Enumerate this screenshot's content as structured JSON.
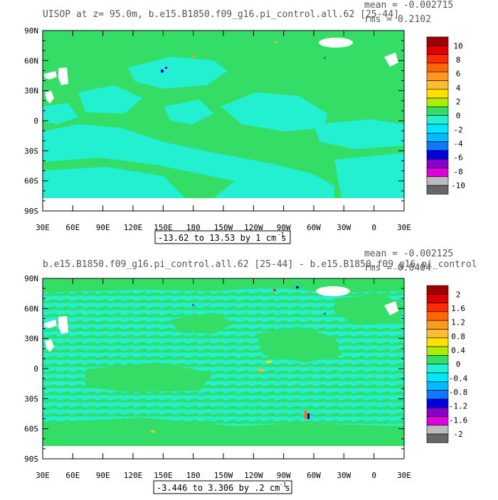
{
  "colors": {
    "ocean_green": "#33dd66",
    "ocean_cyan": "#22f0d0",
    "land": "#ffffff",
    "frame": "#000000",
    "title_text": "#555555"
  },
  "panels": [
    {
      "id": "top",
      "title": "UISOP at z=  95.0m, b.e15.B1850.f09_g16.pi_control.all.62 [25-44]",
      "mean_label": "mean = -0.002715",
      "rms_label": "rms = 0.2102",
      "range_label": "-13.62 to 13.53 by 1 cm s",
      "range_unit_exp": "-1",
      "lat_labels": [
        "90N",
        "60N",
        "30N",
        "0",
        "30S",
        "60S",
        "90S"
      ],
      "lon_labels": [
        "30E",
        "60E",
        "90E",
        "120E",
        "150E",
        "180",
        "150W",
        "120W",
        "90W",
        "60W",
        "30W",
        "0",
        "30E"
      ],
      "colorbar": {
        "labels": [
          "10",
          "8",
          "6",
          "4",
          "2",
          "0",
          "-2",
          "-4",
          "-6",
          "-8",
          "-10"
        ],
        "colors": [
          "#a00000",
          "#dd0000",
          "#ff2a00",
          "#ff6600",
          "#ff9920",
          "#ffbb33",
          "#ffe000",
          "#aaee00",
          "#33dd66",
          "#22f0d0",
          "#00e8ff",
          "#00bbff",
          "#1177ff",
          "#0000dd",
          "#8800cc",
          "#dd00dd",
          "#bbbbbb",
          "#666666"
        ]
      }
    },
    {
      "id": "bottom",
      "title": "b.e15.B1850.f09_g16.pi_control.all.62 [25-44] - b.e15.B1850.f09_g16.pi_control",
      "mean_label": "mean = -0.002125",
      "rms_label": "rms = 0.0404",
      "range_label": "-3.446 to 3.306 by .2 cm s",
      "range_unit_exp": "-1",
      "lat_labels": [
        "90N",
        "60N",
        "30N",
        "0",
        "30S",
        "60S",
        "90S"
      ],
      "lon_labels": [
        "30E",
        "60E",
        "90E",
        "120E",
        "150E",
        "180",
        "150W",
        "120W",
        "90W",
        "60W",
        "30W",
        "0",
        "30E"
      ],
      "colorbar": {
        "labels": [
          "2",
          "1.6",
          "1.2",
          "0.8",
          "0.4",
          "0",
          "-0.4",
          "-0.8",
          "-1.2",
          "-1.6",
          "-2"
        ],
        "colors": [
          "#a00000",
          "#dd0000",
          "#ff2a00",
          "#ff6600",
          "#ff9920",
          "#ffbb33",
          "#ffe000",
          "#aaee00",
          "#33dd66",
          "#22f0d0",
          "#00e8ff",
          "#00bbff",
          "#1177ff",
          "#0000dd",
          "#8800cc",
          "#dd00dd",
          "#bbbbbb",
          "#666666"
        ]
      }
    }
  ]
}
